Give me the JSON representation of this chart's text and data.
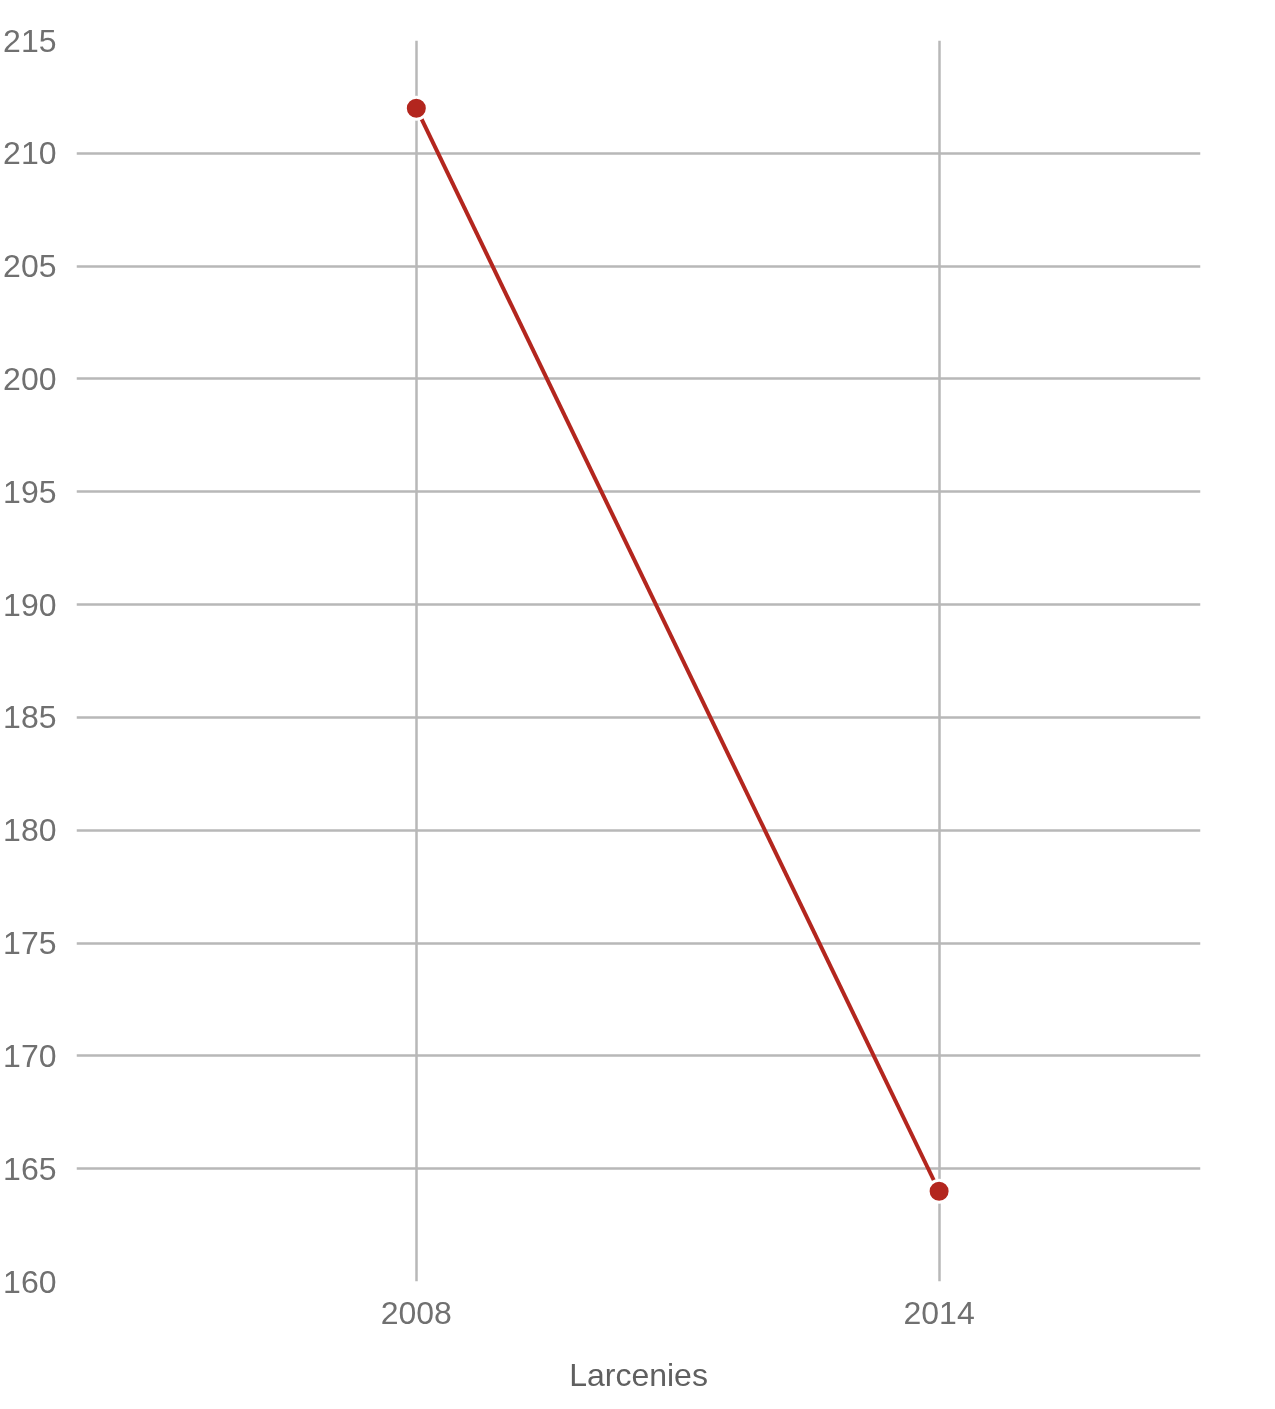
{
  "chart_data": {
    "type": "line",
    "xlabel": "Larcenies",
    "x": [
      2008,
      2014
    ],
    "series": [
      {
        "color": "#b3261e",
        "values": [
          212,
          164
        ]
      }
    ],
    "xlim": [
      2004.1,
      2017
    ],
    "xticks": [
      2008,
      2014
    ],
    "ylim": [
      160,
      215
    ],
    "yticks": [
      160,
      165,
      170,
      175,
      180,
      185,
      190,
      195,
      200,
      205,
      210,
      215
    ],
    "grid": true,
    "marker": "circle",
    "line_style": "solid"
  }
}
